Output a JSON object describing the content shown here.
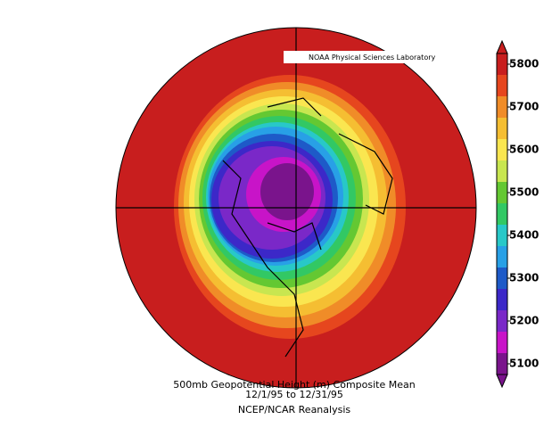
{
  "credit": "NOAA Physical Sciences Laboratory",
  "caption": {
    "line1": "500mb Geopotential Height (m) Composite Mean",
    "line2": "12/1/95  to 12/31/95",
    "line3": "NCEP/NCAR Reanalysis"
  },
  "colorbar": {
    "lim": [
      5075,
      5825
    ],
    "ticks": [
      5100,
      5200,
      5300,
      5400,
      5500,
      5600,
      5700,
      5800
    ],
    "colors": [
      "#7a148c",
      "#c814c8",
      "#7a28c8",
      "#3c28c8",
      "#1e5ac8",
      "#28a0e6",
      "#28c8c8",
      "#32c864",
      "#64c832",
      "#c8e650",
      "#fae650",
      "#f5be32",
      "#f08c28",
      "#e6461e",
      "#c81e1e"
    ]
  }
}
